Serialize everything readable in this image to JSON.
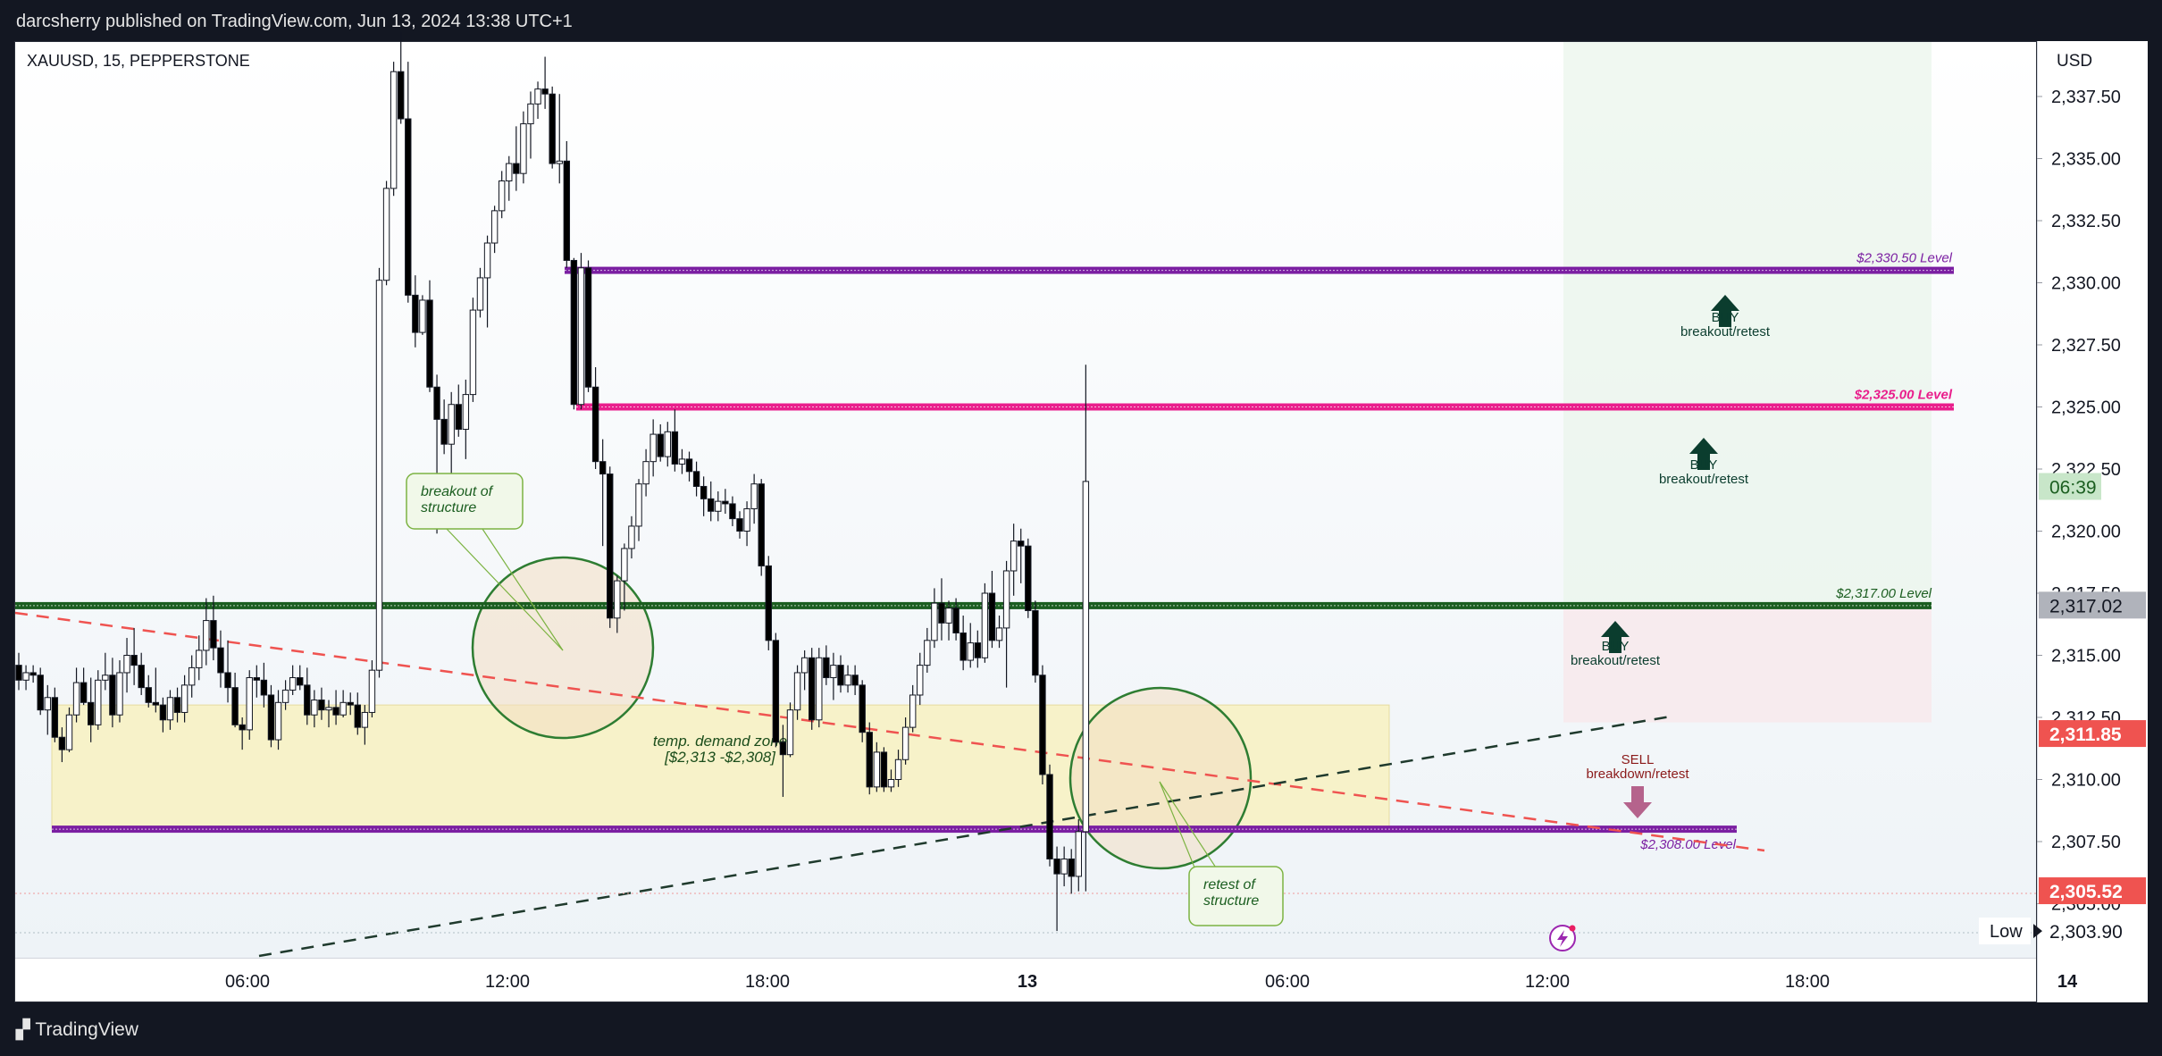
{
  "header": {
    "publisher_line": "darcsherry published on TradingView.com, Jun 13, 2024 13:38 UTC+1",
    "symbol": "XAUUSD, 15, PEPPERSTONE",
    "currency": "USD"
  },
  "footer": {
    "brand": "TradingView"
  },
  "colors": {
    "up": "#ffffff",
    "down": "#000000",
    "wick": "#131722",
    "purple": "#7b1fa2",
    "magenta": "#e91e8c",
    "green": "#1b5e20",
    "demand_zone": "#f7f2c9",
    "circle": "#2e7d32",
    "red_tag": "#ef5350"
  },
  "chart_data": {
    "type": "candlestick",
    "instrument": "XAUUSD",
    "timeframe": "15",
    "y_axis": {
      "ticks": [
        "2,337.50",
        "2,335.00",
        "2,332.50",
        "2,330.00",
        "2,327.50",
        "2,325.00",
        "2,322.50",
        "2,320.00",
        "2,317.50",
        "2,315.00",
        "2,312.50",
        "2,310.00",
        "2,307.50",
        "2,305.00"
      ],
      "tick_values": [
        2337.5,
        2335,
        2332.5,
        2330,
        2327.5,
        2325,
        2322.5,
        2320,
        2317.5,
        2315,
        2312.5,
        2310,
        2307.5,
        2305
      ]
    },
    "x_axis": {
      "ticks": [
        "06:00",
        "12:00",
        "18:00",
        "13",
        "06:00",
        "12:00",
        "18:00",
        "14"
      ],
      "tick_hours": [
        6,
        12,
        18,
        24,
        30,
        36,
        42,
        48
      ]
    },
    "price_tags": [
      {
        "label": "06:39",
        "value": 2321.8,
        "style": "countdown"
      },
      {
        "label": "2,317.02",
        "value": 2317.02,
        "style": "gray"
      },
      {
        "label": "2,311.85",
        "value": 2311.85,
        "style": "red"
      },
      {
        "label": "2,305.52",
        "value": 2305.52,
        "style": "red"
      },
      {
        "label": "2,303.90",
        "value": 2303.9,
        "style": "low"
      }
    ],
    "low_label": "Low",
    "levels": [
      {
        "label": "$2,330.50 Level",
        "value": 2330.5,
        "color": "purple"
      },
      {
        "label": "$2,325.00 Level",
        "value": 2325.0,
        "color": "magenta"
      },
      {
        "label": "$2,317.00 Level",
        "value": 2317.0,
        "color": "green"
      },
      {
        "label": "$2,308.00 Level",
        "value": 2308.0,
        "color": "purple"
      }
    ],
    "zone": {
      "label_line1": "temp. demand zone",
      "label_line2": "[$2,313 -$2,308]",
      "top": 2313,
      "bottom": 2308
    },
    "annotations": [
      {
        "text1": "breakout of",
        "text2": "structure"
      },
      {
        "text1": "retest of",
        "text2": "structure"
      }
    ],
    "signals": [
      {
        "line1": "BUY",
        "line2": "breakout/retest",
        "direction": "up",
        "value": 2330
      },
      {
        "line1": "BUY",
        "line2": "breakout/retest",
        "direction": "up",
        "value": 2324.4
      },
      {
        "line1": "BUY",
        "line2": "breakout/retest",
        "direction": "up",
        "value": 2316.5
      },
      {
        "line1": "SELL",
        "line2": "breakdown/retest",
        "direction": "down",
        "value": 2307.9
      }
    ],
    "candles": [
      [
        2314.6,
        2315.1,
        2313.6,
        2314.0
      ],
      [
        2314.0,
        2314.6,
        2313.6,
        2314.3
      ],
      [
        2314.3,
        2314.6,
        2313.9,
        2314.2
      ],
      [
        2314.2,
        2314.5,
        2312.6,
        2312.8
      ],
      [
        2312.8,
        2313.8,
        2311.8,
        2313.3
      ],
      [
        2313.3,
        2313.7,
        2311.5,
        2311.7
      ],
      [
        2311.7,
        2312.1,
        2310.7,
        2311.2
      ],
      [
        2311.2,
        2312.9,
        2311.1,
        2312.6
      ],
      [
        2312.6,
        2314.5,
        2312.3,
        2313.9
      ],
      [
        2313.9,
        2314.5,
        2313.0,
        2313.1
      ],
      [
        2313.1,
        2314.1,
        2311.5,
        2312.2
      ],
      [
        2312.2,
        2314.4,
        2312.0,
        2314.0
      ],
      [
        2314.0,
        2315.1,
        2313.6,
        2314.2
      ],
      [
        2314.2,
        2314.9,
        2312.1,
        2312.6
      ],
      [
        2312.6,
        2314.8,
        2312.3,
        2314.3
      ],
      [
        2314.3,
        2315.7,
        2313.5,
        2315.0
      ],
      [
        2315.0,
        2316.1,
        2313.8,
        2314.6
      ],
      [
        2314.6,
        2315.1,
        2313.4,
        2313.7
      ],
      [
        2313.7,
        2314.2,
        2312.9,
        2313.1
      ],
      [
        2313.1,
        2314.5,
        2312.7,
        2313.0
      ],
      [
        2313.0,
        2313.3,
        2311.9,
        2312.4
      ],
      [
        2312.4,
        2313.6,
        2312.0,
        2313.3
      ],
      [
        2313.3,
        2313.7,
        2312.3,
        2312.7
      ],
      [
        2312.7,
        2314.2,
        2312.3,
        2313.8
      ],
      [
        2313.8,
        2315.0,
        2313.3,
        2314.5
      ],
      [
        2314.5,
        2315.8,
        2314.0,
        2315.2
      ],
      [
        2315.2,
        2317.3,
        2314.6,
        2316.4
      ],
      [
        2316.4,
        2317.4,
        2314.8,
        2315.3
      ],
      [
        2315.3,
        2316.0,
        2313.7,
        2314.3
      ],
      [
        2314.3,
        2315.6,
        2313.1,
        2313.7
      ],
      [
        2313.7,
        2314.3,
        2312.1,
        2312.2
      ],
      [
        2312.2,
        2312.5,
        2311.2,
        2312.0
      ],
      [
        2312.0,
        2314.4,
        2311.6,
        2314.1
      ],
      [
        2314.1,
        2314.6,
        2313.3,
        2314.0
      ],
      [
        2314.0,
        2314.7,
        2312.9,
        2313.4
      ],
      [
        2313.4,
        2313.8,
        2311.3,
        2311.6
      ],
      [
        2311.6,
        2313.6,
        2311.2,
        2313.1
      ],
      [
        2313.1,
        2314.0,
        2312.8,
        2313.6
      ],
      [
        2313.6,
        2314.6,
        2313.4,
        2314.1
      ],
      [
        2314.1,
        2314.6,
        2313.6,
        2313.8
      ],
      [
        2313.8,
        2314.5,
        2312.2,
        2312.6
      ],
      [
        2312.6,
        2313.6,
        2312.1,
        2313.2
      ],
      [
        2313.2,
        2313.7,
        2312.4,
        2312.8
      ],
      [
        2312.8,
        2313.2,
        2312.1,
        2312.9
      ],
      [
        2312.9,
        2313.6,
        2312.2,
        2312.6
      ],
      [
        2312.6,
        2313.6,
        2312.5,
        2313.1
      ],
      [
        2313.1,
        2313.5,
        2312.6,
        2313.0
      ],
      [
        2313.0,
        2313.5,
        2311.8,
        2312.1
      ],
      [
        2312.1,
        2313.0,
        2311.4,
        2312.7
      ],
      [
        2312.7,
        2314.8,
        2312.5,
        2314.4
      ],
      [
        2314.4,
        2330.6,
        2314.1,
        2330.1
      ],
      [
        2330.1,
        2334.1,
        2329.9,
        2333.8
      ],
      [
        2333.8,
        2338.9,
        2333.5,
        2338.5
      ],
      [
        2338.5,
        2340.1,
        2336.4,
        2336.6
      ],
      [
        2336.6,
        2338.9,
        2329.2,
        2329.5
      ],
      [
        2329.5,
        2330.3,
        2327.4,
        2328.0
      ],
      [
        2328.0,
        2329.5,
        2327.9,
        2329.3
      ],
      [
        2329.3,
        2330.1,
        2325.6,
        2325.8
      ],
      [
        2325.8,
        2326.3,
        2319.9,
        2324.5
      ],
      [
        2324.5,
        2325.3,
        2323.1,
        2323.5
      ],
      [
        2323.5,
        2325.6,
        2321.8,
        2325.1
      ],
      [
        2325.1,
        2325.9,
        2323.8,
        2324.1
      ],
      [
        2324.1,
        2326.1,
        2322.9,
        2325.5
      ],
      [
        2325.5,
        2329.4,
        2325.2,
        2328.9
      ],
      [
        2328.9,
        2330.6,
        2328.6,
        2330.2
      ],
      [
        2330.2,
        2331.9,
        2328.2,
        2331.6
      ],
      [
        2331.6,
        2333.1,
        2331.2,
        2332.9
      ],
      [
        2332.9,
        2334.5,
        2332.6,
        2334.1
      ],
      [
        2334.1,
        2335.1,
        2333.3,
        2334.8
      ],
      [
        2334.8,
        2336.3,
        2333.7,
        2334.4
      ],
      [
        2334.4,
        2336.9,
        2334.0,
        2336.4
      ],
      [
        2336.4,
        2337.7,
        2335.0,
        2337.2
      ],
      [
        2337.2,
        2338.1,
        2336.6,
        2337.8
      ],
      [
        2337.8,
        2339.1,
        2337.0,
        2337.6
      ],
      [
        2337.6,
        2337.9,
        2334.6,
        2334.8
      ],
      [
        2334.8,
        2337.6,
        2334.0,
        2334.9
      ],
      [
        2334.9,
        2335.7,
        2330.6,
        2330.9
      ],
      [
        2330.9,
        2331.0,
        2324.9,
        2325.1
      ],
      [
        2325.1,
        2331.2,
        2324.9,
        2330.6
      ],
      [
        2330.6,
        2330.9,
        2325.6,
        2325.8
      ],
      [
        2325.8,
        2326.6,
        2322.5,
        2322.8
      ],
      [
        2322.8,
        2323.7,
        2319.4,
        2322.3
      ],
      [
        2322.3,
        2322.6,
        2316.1,
        2316.5
      ],
      [
        2316.5,
        2318.2,
        2315.9,
        2318.0
      ],
      [
        2318.0,
        2319.5,
        2316.8,
        2319.3
      ],
      [
        2319.3,
        2320.6,
        2318.9,
        2320.2
      ],
      [
        2320.2,
        2322.1,
        2319.6,
        2321.9
      ],
      [
        2321.9,
        2323.3,
        2321.4,
        2322.8
      ],
      [
        2322.8,
        2324.5,
        2322.2,
        2323.9
      ],
      [
        2323.9,
        2324.3,
        2322.8,
        2323.0
      ],
      [
        2323.0,
        2324.4,
        2322.6,
        2324.0
      ],
      [
        2324.0,
        2324.9,
        2322.4,
        2322.7
      ],
      [
        2322.7,
        2323.3,
        2322.3,
        2322.9
      ],
      [
        2322.9,
        2323.2,
        2322.0,
        2322.4
      ],
      [
        2322.4,
        2322.8,
        2321.4,
        2321.8
      ],
      [
        2321.8,
        2322.2,
        2320.6,
        2321.3
      ],
      [
        2321.3,
        2322.0,
        2320.4,
        2320.8
      ],
      [
        2320.8,
        2321.6,
        2320.4,
        2321.2
      ],
      [
        2321.2,
        2321.7,
        2320.7,
        2321.1
      ],
      [
        2321.1,
        2321.4,
        2320.2,
        2320.5
      ],
      [
        2320.5,
        2320.8,
        2319.7,
        2320.0
      ],
      [
        2320.0,
        2321.2,
        2319.4,
        2320.9
      ],
      [
        2320.9,
        2322.3,
        2320.3,
        2321.9
      ],
      [
        2321.9,
        2322.1,
        2318.2,
        2318.6
      ],
      [
        2318.6,
        2319.0,
        2315.2,
        2315.6
      ],
      [
        2315.6,
        2315.9,
        2311.3,
        2311.5
      ],
      [
        2311.5,
        2312.2,
        2309.3,
        2311.0
      ],
      [
        2311.0,
        2313.1,
        2310.9,
        2312.8
      ],
      [
        2312.8,
        2314.6,
        2312.4,
        2314.3
      ],
      [
        2314.3,
        2315.2,
        2313.6,
        2314.9
      ],
      [
        2314.9,
        2315.3,
        2312.0,
        2312.4
      ],
      [
        2312.4,
        2315.3,
        2312.1,
        2314.9
      ],
      [
        2314.9,
        2315.4,
        2313.8,
        2314.1
      ],
      [
        2314.1,
        2315.1,
        2313.2,
        2314.6
      ],
      [
        2314.6,
        2315.0,
        2313.5,
        2313.8
      ],
      [
        2313.8,
        2314.6,
        2313.5,
        2314.2
      ],
      [
        2314.2,
        2314.6,
        2313.4,
        2313.8
      ],
      [
        2313.8,
        2314.0,
        2311.5,
        2311.9
      ],
      [
        2311.9,
        2312.3,
        2309.4,
        2309.7
      ],
      [
        2309.7,
        2311.5,
        2309.5,
        2311.1
      ],
      [
        2311.1,
        2311.3,
        2309.5,
        2309.7
      ],
      [
        2309.7,
        2310.4,
        2309.5,
        2310.0
      ],
      [
        2310.0,
        2311.2,
        2309.7,
        2310.8
      ],
      [
        2310.8,
        2312.5,
        2310.6,
        2312.1
      ],
      [
        2312.1,
        2313.8,
        2311.9,
        2313.4
      ],
      [
        2313.4,
        2315.1,
        2313.0,
        2314.6
      ],
      [
        2314.6,
        2316.1,
        2314.3,
        2315.6
      ],
      [
        2315.6,
        2317.7,
        2315.3,
        2317.1
      ],
      [
        2317.1,
        2318.1,
        2315.6,
        2316.3
      ],
      [
        2316.3,
        2317.2,
        2315.6,
        2316.9
      ],
      [
        2316.9,
        2317.3,
        2315.6,
        2315.9
      ],
      [
        2315.9,
        2316.6,
        2314.4,
        2314.8
      ],
      [
        2314.8,
        2316.3,
        2314.5,
        2315.5
      ],
      [
        2315.5,
        2316.0,
        2314.5,
        2314.9
      ],
      [
        2314.9,
        2317.9,
        2314.7,
        2317.5
      ],
      [
        2317.5,
        2318.4,
        2315.3,
        2315.6
      ],
      [
        2315.6,
        2316.6,
        2315.3,
        2316.1
      ],
      [
        2316.1,
        2318.8,
        2313.7,
        2318.4
      ],
      [
        2318.4,
        2320.3,
        2317.4,
        2319.6
      ],
      [
        2319.6,
        2320.1,
        2317.9,
        2319.4
      ],
      [
        2319.4,
        2319.7,
        2316.5,
        2316.8
      ],
      [
        2316.8,
        2317.2,
        2313.9,
        2314.2
      ],
      [
        2314.2,
        2314.6,
        2309.8,
        2310.2
      ],
      [
        2310.2,
        2310.6,
        2306.5,
        2306.8
      ],
      [
        2306.8,
        2307.3,
        2303.9,
        2306.2
      ],
      [
        2306.2,
        2307.3,
        2305.7,
        2306.8
      ],
      [
        2306.8,
        2307.2,
        2305.4,
        2306.1
      ],
      [
        2306.1,
        2308.4,
        2305.5,
        2307.9
      ],
      [
        2307.9,
        2326.7,
        2305.5,
        2322.0
      ]
    ]
  }
}
